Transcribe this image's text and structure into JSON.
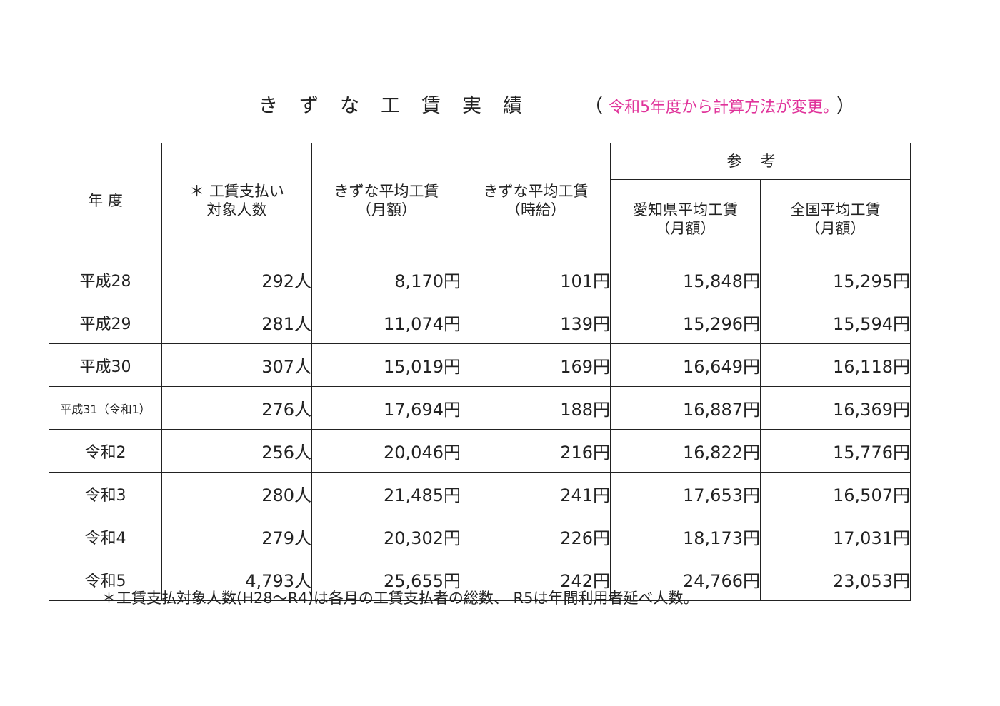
{
  "title": {
    "main": "きずな工賃実績",
    "note_open": "（",
    "note": "令和5年度から計算方法が変更。",
    "note_close": "）",
    "note_color": "#e0339a"
  },
  "headers": {
    "year": "年 度",
    "count_line1": "＊ 工賃支払い",
    "count_line2": "対象人数",
    "avg_month_line1": "きずな平均工賃",
    "avg_month_line2": "（月額）",
    "avg_hour_line1": "きずな平均工賃",
    "avg_hour_line2": "（時給）",
    "reference": "参考",
    "aichi_line1": "愛知県平均工賃",
    "aichi_line2": "（月額）",
    "national_line1": "全国平均工賃",
    "national_line2": "（月額）"
  },
  "rows": [
    {
      "year": "平成28",
      "count": "292人",
      "monthly": "8,170円",
      "hourly": "101円",
      "aichi": "15,848円",
      "national": "15,295円"
    },
    {
      "year": "平成29",
      "count": "281人",
      "monthly": "11,074円",
      "hourly": "139円",
      "aichi": "15,296円",
      "national": "15,594円"
    },
    {
      "year": "平成30",
      "count": "307人",
      "monthly": "15,019円",
      "hourly": "169円",
      "aichi": "16,649円",
      "national": "16,118円"
    },
    {
      "year": "平成31（令和1）",
      "count": "276人",
      "monthly": "17,694円",
      "hourly": "188円",
      "aichi": "16,887円",
      "national": "16,369円"
    },
    {
      "year": "令和2",
      "count": "256人",
      "monthly": "20,046円",
      "hourly": "216円",
      "aichi": "16,822円",
      "national": "15,776円"
    },
    {
      "year": "令和3",
      "count": "280人",
      "monthly": "21,485円",
      "hourly": "241円",
      "aichi": "17,653円",
      "national": "16,507円"
    },
    {
      "year": "令和4",
      "count": "279人",
      "monthly": "20,302円",
      "hourly": "226円",
      "aichi": "18,173円",
      "national": "17,031円"
    },
    {
      "year": "令和5",
      "count": "4,793人",
      "monthly": "25,655円",
      "hourly": "242円",
      "aichi": "24,766円",
      "national": "23,053円"
    }
  ],
  "footnote": "＊工賃支払対象人数(H28～R4)は各月の工賃支払者の総数、 R5は年間利用者延べ人数。"
}
